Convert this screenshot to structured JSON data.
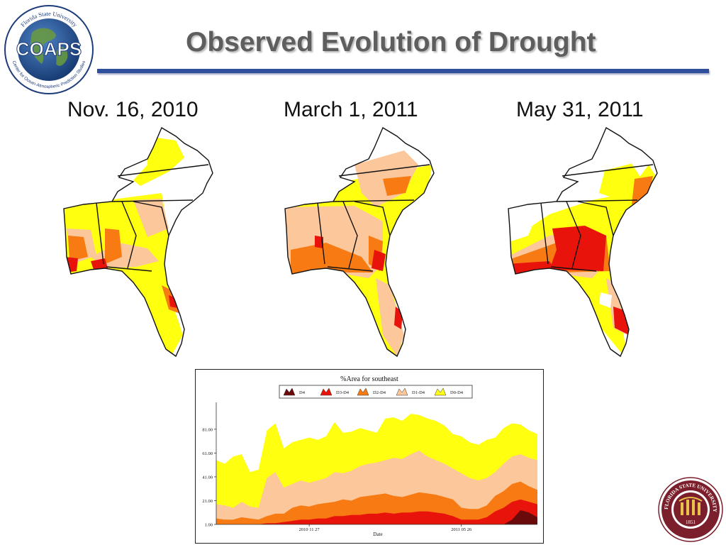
{
  "slide": {
    "title": "Observed Evolution of Drought"
  },
  "logos": {
    "coaps": {
      "icon": "globe-icon",
      "main_text": "COAPS",
      "ring_top": "Florida State University",
      "ring_bottom": "Center for Ocean-Atmospheric Prediction Studies"
    },
    "fsu_seal": {
      "icon": "fsu-seal-icon",
      "ring_text": "FLORIDA STATE UNIVERSITY",
      "year": "1851"
    }
  },
  "maps": [
    {
      "label": "Nov. 16, 2010",
      "icon": "southeast-drought-map-icon"
    },
    {
      "label": "March 1, 2011",
      "icon": "southeast-drought-map-icon"
    },
    {
      "label": "May 31, 2011",
      "icon": "southeast-drought-map-icon"
    }
  ],
  "colors": {
    "D4": "#6b0a0a",
    "D3-D4": "#e8140c",
    "D2-D4": "#f77b12",
    "D1-D4": "#fcc79a",
    "D0-D4": "#ffff10",
    "title_rule": "#2e4f9c"
  },
  "chart_data": {
    "type": "area",
    "title": "%Area for southeast",
    "xlabel": "Date",
    "ylabel": "",
    "x_tick_labels": [
      "2010 11 27",
      "2011 05 26"
    ],
    "y_ticks": [
      "1.00",
      "21.00",
      "41.00",
      "61.00",
      "81.00"
    ],
    "ylim": [
      1,
      100
    ],
    "legend": [
      "D4",
      "D3-D4",
      "D2-D4",
      "D1-D4",
      "D0-D4"
    ],
    "legend_position": "top",
    "grid": false,
    "series": [
      {
        "name": "D0-D4",
        "values": [
          55,
          52,
          58,
          60,
          45,
          47,
          80,
          86,
          65,
          70,
          72,
          74,
          72,
          75,
          87,
          78,
          79,
          82,
          80,
          78,
          90,
          91,
          88,
          94,
          93,
          90,
          88,
          84,
          77,
          75,
          70,
          68,
          72,
          74,
          82,
          86,
          85,
          80,
          77
        ]
      },
      {
        "name": "D1-D4",
        "values": [
          18,
          17,
          15,
          20,
          16,
          15,
          40,
          45,
          32,
          35,
          38,
          36,
          38,
          40,
          45,
          44,
          46,
          50,
          52,
          53,
          55,
          57,
          56,
          60,
          63,
          58,
          55,
          52,
          48,
          44,
          40,
          38,
          40,
          45,
          52,
          58,
          60,
          57,
          55
        ]
      },
      {
        "name": "D2-D4",
        "values": [
          6,
          5,
          5,
          7,
          6,
          5,
          8,
          10,
          10,
          15,
          17,
          16,
          18,
          19,
          20,
          22,
          21,
          24,
          25,
          26,
          27,
          25,
          24,
          26,
          28,
          27,
          26,
          24,
          22,
          15,
          14,
          14,
          17,
          25,
          29,
          35,
          37,
          33,
          30
        ]
      },
      {
        "name": "D3-D4",
        "values": [
          1,
          1,
          1,
          1,
          1,
          1,
          2,
          2,
          3,
          4,
          5,
          5,
          6,
          6,
          8,
          8,
          9,
          9,
          10,
          10,
          11,
          10,
          11,
          11,
          12,
          12,
          11,
          10,
          8,
          5,
          5,
          5,
          7,
          12,
          15,
          20,
          22,
          20,
          18
        ]
      },
      {
        "name": "D4",
        "values": [
          0,
          0,
          0,
          0,
          0,
          0,
          0,
          0,
          0,
          0,
          0,
          0,
          0,
          0,
          0,
          0,
          0,
          0,
          0,
          0,
          0,
          0,
          0,
          0,
          0,
          0,
          0,
          0,
          0,
          0,
          0,
          0,
          0,
          0,
          0,
          5,
          13,
          11,
          7
        ]
      }
    ]
  }
}
